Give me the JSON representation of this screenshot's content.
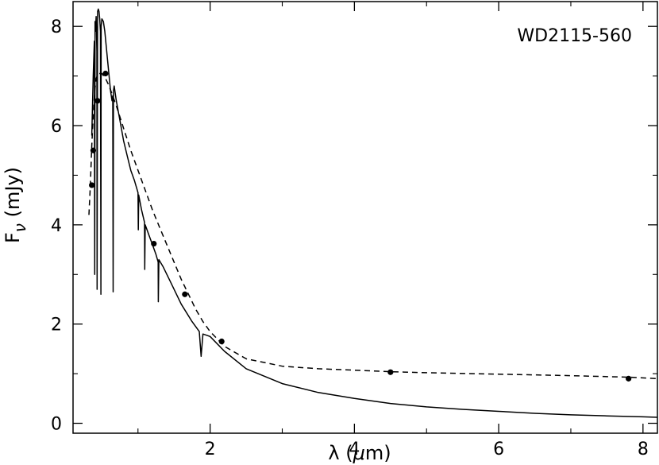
{
  "chart_data": {
    "type": "line",
    "annotation": "WD2115-560",
    "xlabel": {
      "prefix": "λ (",
      "mu": "μ",
      "suffix": "m)"
    },
    "ylabel": {
      "base": "F",
      "sub": "ν",
      "unit": " (mJy)"
    },
    "xlim": [
      0.1,
      8.2
    ],
    "ylim": [
      -0.2,
      8.5
    ],
    "x_ticks": [
      2,
      4,
      6,
      8
    ],
    "x_minor_ticks": [
      1,
      3,
      5,
      7
    ],
    "y_ticks": [
      0,
      2,
      4,
      6,
      8
    ],
    "y_minor_ticks": [
      1,
      3,
      5,
      7
    ],
    "grid": false,
    "series": [
      {
        "style": "solid",
        "x": [
          0.36,
          0.38,
          0.395,
          0.4,
          0.405,
          0.41,
          0.42,
          0.43,
          0.434,
          0.44,
          0.45,
          0.46,
          0.47,
          0.48,
          0.486,
          0.49,
          0.5,
          0.52,
          0.54,
          0.56,
          0.58,
          0.6,
          0.62,
          0.64,
          0.65,
          0.656,
          0.66,
          0.67,
          0.7,
          0.75,
          0.8,
          0.85,
          0.9,
          0.95,
          1.0,
          1.005,
          1.01,
          1.05,
          1.09,
          1.094,
          1.1,
          1.15,
          1.2,
          1.25,
          1.28,
          1.282,
          1.29,
          1.35,
          1.45,
          1.6,
          1.75,
          1.85,
          1.875,
          1.9,
          2.0,
          2.2,
          2.5,
          3.0,
          3.5,
          4.0,
          4.5,
          5.0,
          5.5,
          6.0,
          6.5,
          7.0,
          7.5,
          8.0,
          8.2
        ],
        "y": [
          5.8,
          7.0,
          7.7,
          3.0,
          8.1,
          7.9,
          8.2,
          7.5,
          2.7,
          8.3,
          8.35,
          8.3,
          8.15,
          7.9,
          2.6,
          8.0,
          8.15,
          8.1,
          7.9,
          7.6,
          7.3,
          7.0,
          6.7,
          6.5,
          6.6,
          2.65,
          6.7,
          6.8,
          6.5,
          6.1,
          5.7,
          5.4,
          5.1,
          4.9,
          4.65,
          3.9,
          4.6,
          4.3,
          4.05,
          3.1,
          4.0,
          3.8,
          3.6,
          3.4,
          3.25,
          2.45,
          3.3,
          3.15,
          2.85,
          2.4,
          2.05,
          1.85,
          1.35,
          1.8,
          1.75,
          1.45,
          1.1,
          0.8,
          0.62,
          0.5,
          0.4,
          0.33,
          0.28,
          0.24,
          0.2,
          0.17,
          0.15,
          0.13,
          0.12
        ]
      },
      {
        "style": "dashed",
        "x": [
          0.32,
          0.34,
          0.36,
          0.38,
          0.4,
          0.42,
          0.45,
          0.5,
          0.55,
          0.6,
          0.65,
          0.7,
          0.8,
          0.9,
          1.0,
          1.1,
          1.2,
          1.3,
          1.4,
          1.5,
          1.6,
          1.7,
          1.8,
          1.9,
          2.0,
          2.2,
          2.5,
          3.0,
          3.5,
          4.0,
          4.5,
          5.0,
          6.0,
          7.0,
          7.8,
          8.2
        ],
        "y": [
          4.2,
          4.8,
          5.6,
          6.2,
          6.7,
          6.95,
          7.05,
          7.05,
          6.95,
          6.8,
          6.6,
          6.4,
          5.95,
          5.5,
          5.1,
          4.7,
          4.3,
          3.95,
          3.6,
          3.25,
          2.9,
          2.6,
          2.3,
          2.05,
          1.85,
          1.55,
          1.3,
          1.15,
          1.1,
          1.07,
          1.04,
          1.02,
          0.99,
          0.96,
          0.93,
          0.9
        ]
      }
    ],
    "points": {
      "x": [
        0.36,
        0.38,
        0.44,
        0.55,
        1.22,
        1.65,
        2.16,
        4.5,
        7.8
      ],
      "y": [
        4.8,
        5.5,
        6.5,
        7.05,
        3.62,
        2.6,
        1.65,
        1.03,
        0.9
      ]
    }
  }
}
